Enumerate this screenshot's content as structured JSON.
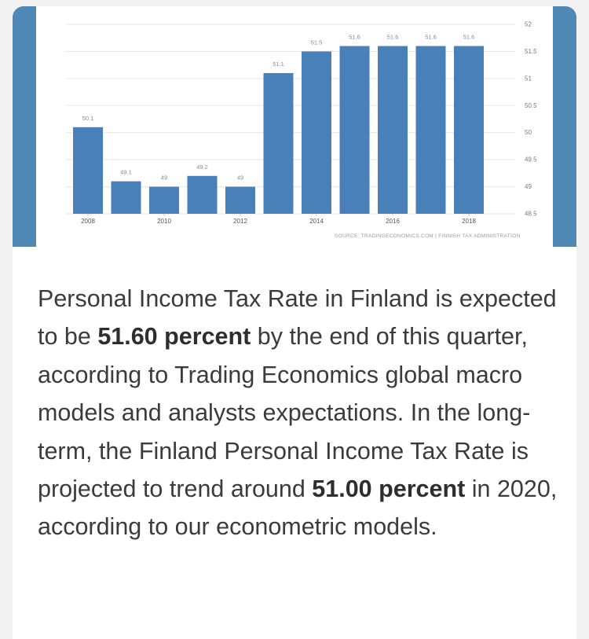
{
  "chart_data": {
    "type": "bar",
    "categories": [
      "2008",
      "2009",
      "2010",
      "2011",
      "2012",
      "2013",
      "2014",
      "2015",
      "2016",
      "2017",
      "2018"
    ],
    "values": [
      50.1,
      49.1,
      49,
      49.2,
      49,
      51.1,
      51.5,
      51.6,
      51.6,
      51.6,
      51.6
    ],
    "value_labels": [
      "50.1",
      "49.1",
      "49",
      "49.2",
      "49",
      "51.1",
      "51.5",
      "51.6",
      "51.6",
      "51.6",
      "51.6"
    ],
    "x_tick_labels": [
      "2008",
      "2010",
      "2012",
      "2014",
      "2016",
      "2018"
    ],
    "y_ticks": [
      "48.5",
      "49",
      "49.5",
      "50",
      "50.5",
      "51",
      "51.5",
      "52"
    ],
    "ylim": [
      48.5,
      52
    ],
    "y_axis_side": "right",
    "grid": true,
    "bar_color": "#4a80b9",
    "source": "SOURCE: TRADINGECONOMICS.COM | FINNISH TAX ADMINISTRATION"
  },
  "description": {
    "p1": "Personal Income Tax Rate in Finland is expected to be ",
    "b1": "51.60 percent",
    "p2": " by the end of this quarter, according to Trading Economics global macro models and analysts expectations. In the long-term, the Finland Personal Income Tax Rate is projected to trend around ",
    "b2": "51.00 percent",
    "p3": " in 2020, according to our econometric models."
  },
  "colors": {
    "band": "#4f87b5",
    "bar": "#4a80b9",
    "text": "#3b3b3b"
  }
}
